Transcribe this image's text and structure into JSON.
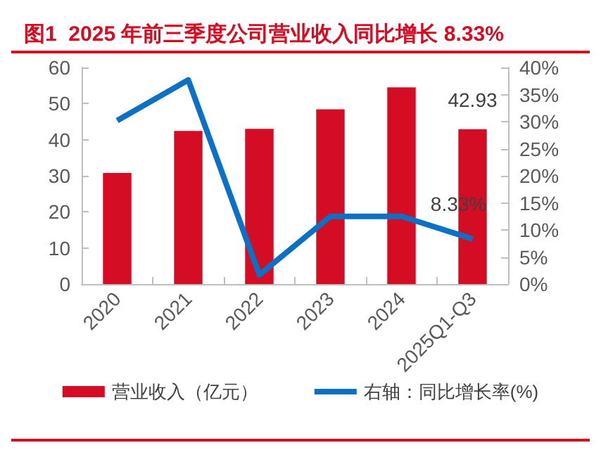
{
  "chart_data": {
    "type": "bar",
    "title": "图1  2025 年前三季度公司营业收入同比增长 8.33%",
    "categories": [
      "2020",
      "2021",
      "2022",
      "2023",
      "2024",
      "2025Q1-Q3"
    ],
    "series": [
      {
        "name": "营业收入（亿元）",
        "color": "#d40c24",
        "values": [
          30.8,
          42.4,
          43.0,
          48.4,
          54.5,
          42.93
        ],
        "value_labels": [
          null,
          null,
          null,
          null,
          null,
          "42.93"
        ]
      },
      {
        "name": "右轴：同比增长率(%)",
        "type": "line",
        "axis": "y2",
        "color": "#0c70c4",
        "values": [
          30.2,
          37.7,
          1.7,
          12.5,
          12.5,
          8.33
        ],
        "value_labels": [
          null,
          null,
          null,
          null,
          null,
          "8.33%"
        ]
      }
    ],
    "ylim": [
      0,
      60
    ],
    "yticks": [
      0,
      10,
      20,
      30,
      40,
      50,
      60
    ],
    "y2lim": [
      0,
      40
    ],
    "y2ticks": [
      {
        "value": 0,
        "label": "0%"
      },
      {
        "value": 5,
        "label": "5%"
      },
      {
        "value": 10,
        "label": "10%"
      },
      {
        "value": 15,
        "label": "15%"
      },
      {
        "value": 20,
        "label": "20%"
      },
      {
        "value": 25,
        "label": "25%"
      },
      {
        "value": 30,
        "label": "30%"
      },
      {
        "value": 35,
        "label": "35%"
      },
      {
        "value": 40,
        "label": "40%"
      }
    ],
    "grid": false,
    "legend": "bottom",
    "marker": "none",
    "line_style": "solid"
  }
}
